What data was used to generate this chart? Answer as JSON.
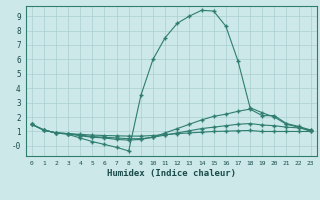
{
  "xlabel": "Humidex (Indice chaleur)",
  "bg_color": "#cce8e8",
  "grid_color": "#aacfcf",
  "line_color": "#2e7d6e",
  "xlim": [
    -0.5,
    23.5
  ],
  "ylim": [
    -0.7,
    9.7
  ],
  "xticks": [
    0,
    1,
    2,
    3,
    4,
    5,
    6,
    7,
    8,
    9,
    10,
    11,
    12,
    13,
    14,
    15,
    16,
    17,
    18,
    19,
    20,
    21,
    22,
    23
  ],
  "yticks": [
    0,
    1,
    2,
    3,
    4,
    5,
    6,
    7,
    8,
    9
  ],
  "ytick_labels": [
    "-0",
    "1",
    "2",
    "3",
    "4",
    "5",
    "6",
    "7",
    "8",
    "9"
  ],
  "series": [
    {
      "x": [
        0,
        1,
        2,
        3,
        4,
        5,
        6,
        7,
        8,
        9,
        10,
        11,
        12,
        13,
        14,
        15,
        16,
        17,
        18,
        19,
        20,
        21,
        22,
        23
      ],
      "y": [
        1.5,
        1.1,
        0.9,
        0.8,
        0.55,
        0.3,
        0.1,
        -0.1,
        -0.35,
        3.5,
        6.0,
        7.5,
        8.5,
        9.0,
        9.4,
        9.35,
        8.3,
        5.9,
        2.65,
        2.3,
        2.0,
        1.5,
        1.3,
        1.0
      ]
    },
    {
      "x": [
        0,
        1,
        2,
        3,
        4,
        5,
        6,
        7,
        8,
        9,
        10,
        11,
        12,
        13,
        14,
        15,
        16,
        17,
        18,
        19,
        20,
        21,
        22,
        23
      ],
      "y": [
        1.5,
        1.1,
        0.9,
        0.85,
        0.7,
        0.6,
        0.55,
        0.45,
        0.4,
        0.45,
        0.6,
        0.9,
        1.2,
        1.5,
        1.8,
        2.05,
        2.2,
        2.4,
        2.55,
        2.1,
        2.1,
        1.55,
        1.35,
        1.1
      ]
    },
    {
      "x": [
        0,
        1,
        2,
        3,
        4,
        5,
        6,
        7,
        8,
        9,
        10,
        11,
        12,
        13,
        14,
        15,
        16,
        17,
        18,
        19,
        20,
        21,
        22,
        23
      ],
      "y": [
        1.5,
        1.1,
        0.9,
        0.85,
        0.75,
        0.65,
        0.6,
        0.55,
        0.5,
        0.5,
        0.6,
        0.75,
        0.9,
        1.05,
        1.2,
        1.3,
        1.4,
        1.5,
        1.55,
        1.45,
        1.4,
        1.3,
        1.25,
        1.1
      ]
    },
    {
      "x": [
        0,
        1,
        2,
        3,
        4,
        5,
        6,
        7,
        8,
        9,
        10,
        11,
        12,
        13,
        14,
        15,
        16,
        17,
        18,
        19,
        20,
        21,
        22,
        23
      ],
      "y": [
        1.5,
        1.1,
        0.9,
        0.85,
        0.8,
        0.75,
        0.72,
        0.7,
        0.68,
        0.68,
        0.72,
        0.78,
        0.85,
        0.9,
        0.95,
        1.0,
        1.02,
        1.05,
        1.07,
        1.0,
        1.0,
        1.0,
        1.0,
        1.0
      ]
    }
  ]
}
